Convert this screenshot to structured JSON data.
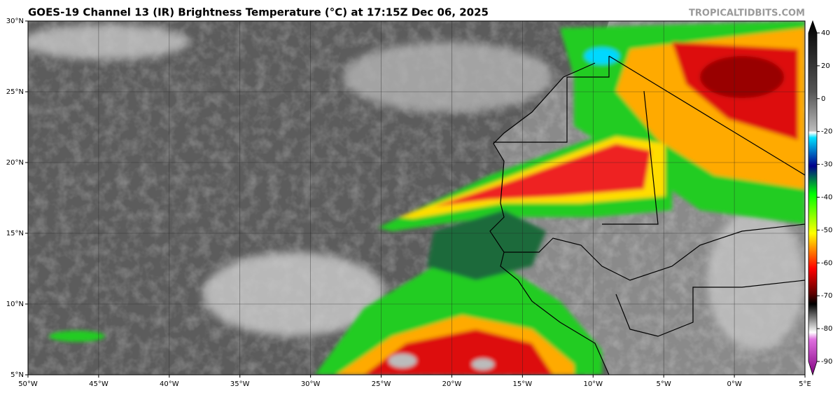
{
  "title": "GOES-19 Channel 13 (IR) Brightness Temperature (°C) at 17:15Z Dec 06, 2025",
  "watermark": "TROPICALTIDBITS.COM",
  "map": {
    "lonlim": [
      -50,
      5
    ],
    "latlim": [
      5,
      30
    ],
    "lon_ticks": [
      {
        "value": -50,
        "label": "50°W"
      },
      {
        "value": -45,
        "label": "45°W"
      },
      {
        "value": -40,
        "label": "40°W"
      },
      {
        "value": -35,
        "label": "35°W"
      },
      {
        "value": -30,
        "label": "30°W"
      },
      {
        "value": -25,
        "label": "25°W"
      },
      {
        "value": -20,
        "label": "20°W"
      },
      {
        "value": -15,
        "label": "15°W"
      },
      {
        "value": -10,
        "label": "10°W"
      },
      {
        "value": -5,
        "label": "5°W"
      },
      {
        "value": 0,
        "label": "0°W"
      },
      {
        "value": 5,
        "label": "5°E"
      }
    ],
    "lat_ticks": [
      {
        "value": 30,
        "label": "30°N"
      },
      {
        "value": 25,
        "label": "25°N"
      },
      {
        "value": 20,
        "label": "20°N"
      },
      {
        "value": 15,
        "label": "15°N"
      },
      {
        "value": 10,
        "label": "10°N"
      },
      {
        "value": 5,
        "label": "5°N"
      }
    ]
  },
  "colorbar": {
    "ticks": [
      40,
      20,
      0,
      -20,
      -30,
      -40,
      -50,
      -60,
      -70,
      -80,
      -90
    ]
  }
}
